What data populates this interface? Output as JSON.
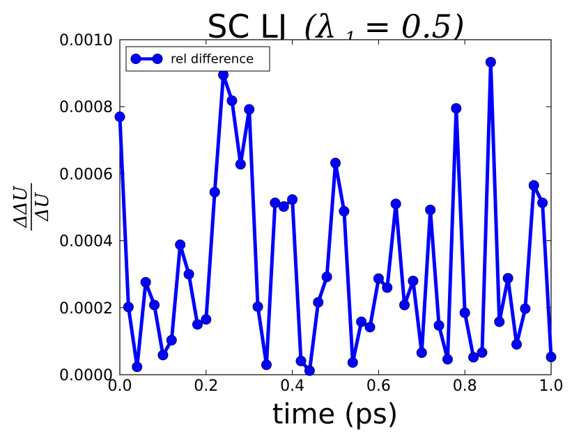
{
  "chart_data": {
    "type": "line",
    "title": {
      "prefix": "SC LJ",
      "math": "(λ",
      "subscript": "1",
      "math_suffix": " = 0.5)"
    },
    "xlabel": "time (ps)",
    "ylabel": {
      "numerator": "ΔΔU",
      "denominator": "ΔU"
    },
    "xlim": [
      0.0,
      1.0
    ],
    "ylim": [
      0.0,
      0.001
    ],
    "xticks": [
      "0.0",
      "0.2",
      "0.4",
      "0.6",
      "0.8",
      "1.0"
    ],
    "xtick_values": [
      0.0,
      0.2,
      0.4,
      0.6,
      0.8,
      1.0
    ],
    "yticks": [
      "0.0000",
      "0.0002",
      "0.0004",
      "0.0006",
      "0.0008",
      "0.0010"
    ],
    "ytick_values": [
      0.0,
      0.0002,
      0.0004,
      0.0006,
      0.0008,
      0.001
    ],
    "grid": false,
    "legend_position": "top-left",
    "series": [
      {
        "name": "rel difference",
        "color": "#0000ff",
        "x": [
          0.0,
          0.02,
          0.04,
          0.06,
          0.08,
          0.1,
          0.12,
          0.14,
          0.16,
          0.18,
          0.2,
          0.22,
          0.24,
          0.26,
          0.28,
          0.3,
          0.32,
          0.34,
          0.36,
          0.38,
          0.4,
          0.42,
          0.44,
          0.46,
          0.48,
          0.5,
          0.52,
          0.54,
          0.56,
          0.58,
          0.6,
          0.62,
          0.64,
          0.66,
          0.68,
          0.7,
          0.72,
          0.74,
          0.76,
          0.78,
          0.8,
          0.82,
          0.84,
          0.86,
          0.88,
          0.9,
          0.92,
          0.94,
          0.96,
          0.98,
          1.0
        ],
        "y": [
          0.00077,
          0.000202,
          2.35e-05,
          0.000276,
          0.000208,
          5.85e-05,
          0.000103,
          0.000388,
          0.0003,
          0.00015,
          0.000165,
          0.000545,
          0.000895,
          0.000818,
          0.000628,
          0.000792,
          0.000203,
          2.95e-05,
          0.000513,
          0.000502,
          0.000523,
          4.1e-05,
          1.2e-05,
          0.000216,
          0.000292,
          0.000632,
          0.000488,
          3.65e-05,
          0.000158,
          0.000142,
          0.000287,
          0.00026,
          0.00051,
          0.000208,
          0.00028,
          6.55e-05,
          0.000492,
          0.000147,
          4.6e-05,
          0.000795,
          0.000185,
          5.2e-05,
          6.6e-05,
          0.000933,
          0.000158,
          0.000288,
          9.05e-05,
          0.000197,
          0.000565,
          0.000513,
          5.3e-05
        ]
      }
    ]
  }
}
